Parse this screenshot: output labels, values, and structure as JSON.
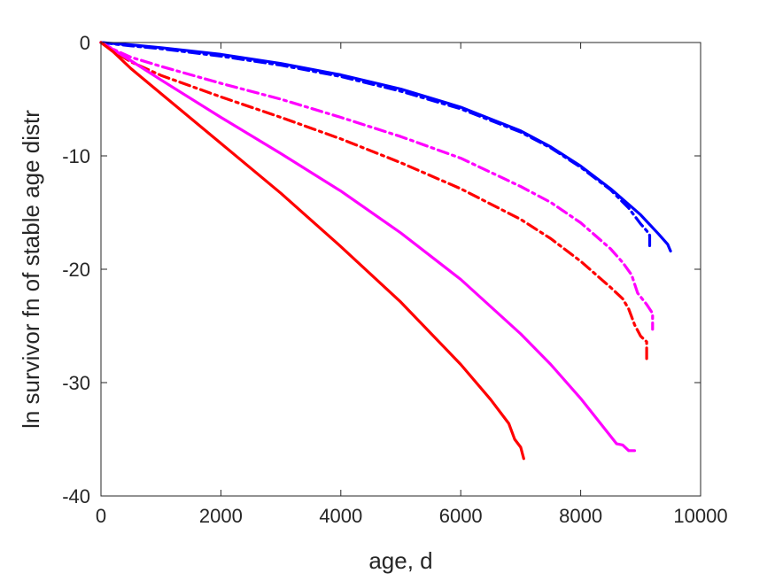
{
  "chart_data": {
    "type": "line",
    "title": "",
    "xlabel": "age, d",
    "ylabel": "ln survivor fn of stable age distr",
    "xlim": [
      0,
      10000
    ],
    "ylim": [
      -40,
      0
    ],
    "xticks": [
      "0",
      "2000",
      "4000",
      "6000",
      "8000",
      "10000"
    ],
    "yticks": [
      "0",
      "-10",
      "-20",
      "-30",
      "-40"
    ],
    "grid": false,
    "legend": "none",
    "series": [
      {
        "color": "#0000ff",
        "style": "solid",
        "x": [
          0,
          500,
          1000,
          2000,
          3000,
          4000,
          5000,
          6000,
          7000,
          7500,
          8000,
          8500,
          9000,
          9300,
          9450,
          9500
        ],
        "y": [
          0,
          -0.2,
          -0.45,
          -1.05,
          -1.85,
          -2.85,
          -4.1,
          -5.7,
          -7.8,
          -9.2,
          -10.9,
          -12.9,
          -15.2,
          -16.9,
          -17.8,
          -18.4
        ]
      },
      {
        "color": "#0000ff",
        "style": "dashdot",
        "x": [
          0,
          500,
          1000,
          2000,
          3000,
          4000,
          5000,
          6000,
          7000,
          7500,
          8000,
          8500,
          8800,
          9000,
          9100,
          9150,
          9150
        ],
        "y": [
          0,
          -0.3,
          -0.55,
          -1.2,
          -2.0,
          -3.0,
          -4.3,
          -5.85,
          -7.9,
          -9.3,
          -11.0,
          -13.0,
          -14.6,
          -16.0,
          -16.6,
          -17.0,
          -18.2
        ]
      },
      {
        "color": "#ff00ff",
        "style": "dashdot",
        "x": [
          0,
          250,
          500,
          1000,
          2000,
          3000,
          4000,
          5000,
          6000,
          7000,
          7500,
          8000,
          8500,
          8700,
          8850,
          8950,
          9100,
          9200,
          9200
        ],
        "y": [
          0,
          -0.7,
          -1.3,
          -2.1,
          -3.6,
          -5.0,
          -6.6,
          -8.3,
          -10.2,
          -12.7,
          -14.1,
          -15.9,
          -18.2,
          -19.4,
          -20.5,
          -22.1,
          -23.1,
          -23.9,
          -25.3
        ]
      },
      {
        "color": "#ff0000",
        "style": "dashdot",
        "x": [
          0,
          250,
          500,
          1000,
          2000,
          3000,
          4000,
          5000,
          6000,
          7000,
          7500,
          8000,
          8500,
          8700,
          8800,
          8900,
          9000,
          9100,
          9100
        ],
        "y": [
          0,
          -0.9,
          -1.7,
          -2.9,
          -4.8,
          -6.6,
          -8.5,
          -10.6,
          -12.9,
          -15.6,
          -17.3,
          -19.3,
          -21.6,
          -22.6,
          -23.5,
          -24.9,
          -25.9,
          -26.4,
          -28.0
        ]
      },
      {
        "color": "#ff00ff",
        "style": "solid",
        "x": [
          0,
          200,
          500,
          1000,
          2000,
          3000,
          4000,
          5000,
          6000,
          7000,
          7500,
          8000,
          8300,
          8600,
          8700,
          8800,
          8900
        ],
        "y": [
          0,
          -0.6,
          -1.6,
          -3.3,
          -6.6,
          -9.8,
          -13.1,
          -16.8,
          -20.9,
          -25.7,
          -28.4,
          -31.4,
          -33.4,
          -35.4,
          -35.5,
          -36.0,
          -36.0
        ]
      },
      {
        "color": "#ff0000",
        "style": "solid",
        "x": [
          0,
          200,
          500,
          1000,
          2000,
          3000,
          4000,
          5000,
          6000,
          6500,
          6800,
          6900,
          7000,
          7050
        ],
        "y": [
          0,
          -0.8,
          -2.3,
          -4.5,
          -8.9,
          -13.3,
          -18.0,
          -22.9,
          -28.4,
          -31.5,
          -33.6,
          -35.0,
          -35.7,
          -36.7
        ]
      }
    ]
  }
}
